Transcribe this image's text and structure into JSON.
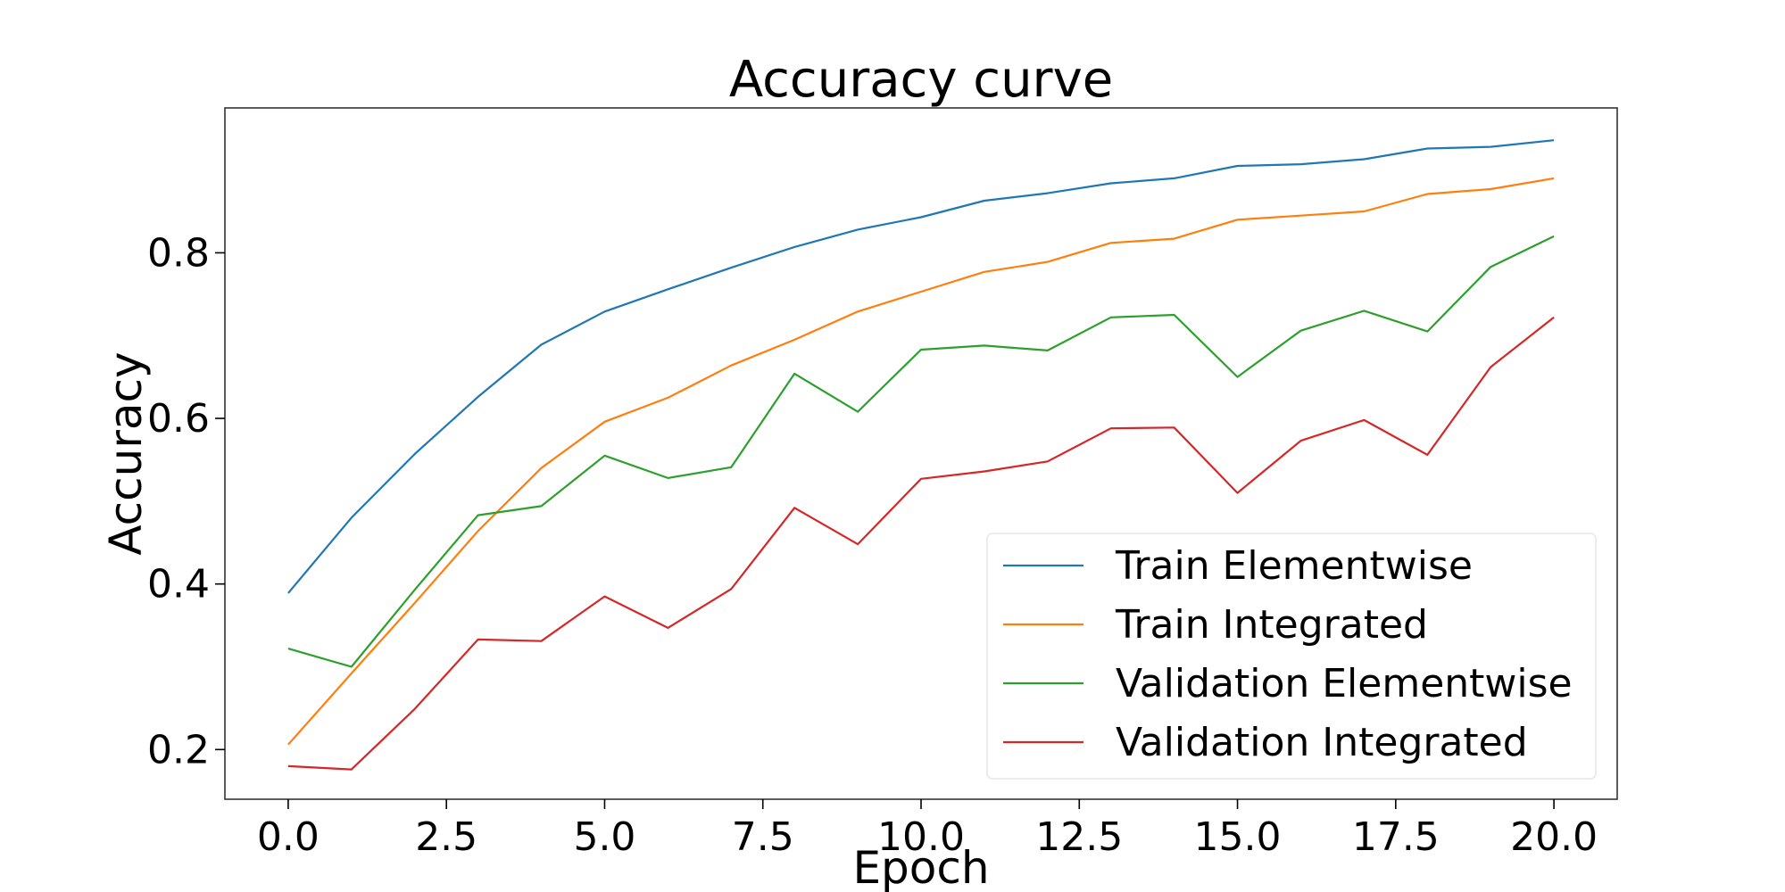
{
  "chart_data": {
    "type": "line",
    "title": "Accuracy curve",
    "xlabel": "Epoch",
    "ylabel": "Accuracy",
    "xlim": [
      -1,
      21
    ],
    "ylim": [
      0.14,
      0.975
    ],
    "x_ticks": [
      0.0,
      2.5,
      5.0,
      7.5,
      10.0,
      12.5,
      15.0,
      17.5,
      20.0
    ],
    "x_tick_labels": [
      "0.0",
      "2.5",
      "5.0",
      "7.5",
      "10.0",
      "12.5",
      "15.0",
      "17.5",
      "20.0"
    ],
    "y_ticks": [
      0.2,
      0.4,
      0.6,
      0.8
    ],
    "y_tick_labels": [
      "0.2",
      "0.4",
      "0.6",
      "0.8"
    ],
    "grid": false,
    "legend_position": "lower-right",
    "x": [
      0,
      1,
      2,
      3,
      4,
      5,
      6,
      7,
      8,
      9,
      10,
      11,
      12,
      13,
      14,
      15,
      16,
      17,
      18,
      19,
      20
    ],
    "series": [
      {
        "name": "Train Elementwise",
        "color": "#1f77b4",
        "values": [
          0.389,
          0.48,
          0.557,
          0.626,
          0.689,
          0.729,
          0.756,
          0.782,
          0.807,
          0.828,
          0.843,
          0.863,
          0.872,
          0.884,
          0.89,
          0.905,
          0.907,
          0.913,
          0.926,
          0.928,
          0.936
        ]
      },
      {
        "name": "Train Integrated",
        "color": "#ff7f0e",
        "values": [
          0.206,
          0.292,
          0.377,
          0.464,
          0.54,
          0.596,
          0.625,
          0.664,
          0.695,
          0.729,
          0.753,
          0.777,
          0.789,
          0.812,
          0.817,
          0.84,
          0.845,
          0.85,
          0.871,
          0.877,
          0.89
        ]
      },
      {
        "name": "Validation Elementwise",
        "color": "#2ca02c",
        "values": [
          0.322,
          0.3,
          0.393,
          0.483,
          0.494,
          0.555,
          0.528,
          0.541,
          0.654,
          0.608,
          0.683,
          0.688,
          0.682,
          0.722,
          0.725,
          0.65,
          0.706,
          0.73,
          0.705,
          0.783,
          0.82
        ]
      },
      {
        "name": "Validation Integrated",
        "color": "#d62728",
        "values": [
          0.18,
          0.176,
          0.249,
          0.333,
          0.331,
          0.385,
          0.347,
          0.394,
          0.492,
          0.448,
          0.527,
          0.536,
          0.548,
          0.588,
          0.589,
          0.51,
          0.573,
          0.598,
          0.556,
          0.662,
          0.722
        ]
      }
    ]
  }
}
